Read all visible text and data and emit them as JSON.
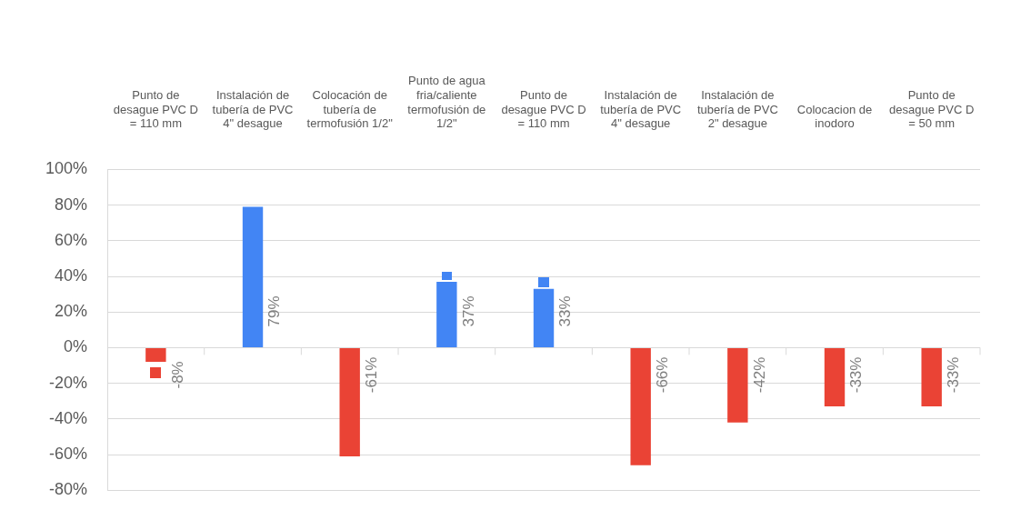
{
  "chart_data": {
    "type": "bar",
    "categories": [
      "Punto de desague PVC D = 110 mm",
      "Instalación de tubería de PVC 4\" desague",
      "Colocación de tubería de termofusión 1/2\"",
      "Punto de agua fria/caliente termofusión de 1/2\"",
      "Punto de desague PVC D = 110 mm",
      "Instalación de tubería de PVC 4\" desague",
      "Instalación de tubería de PVC 2\" desague",
      "Colocacion de inodoro",
      "Punto de desague PVC D = 50 mm"
    ],
    "values": [
      -8,
      79,
      -61,
      37,
      33,
      -66,
      -42,
      -33,
      -33
    ],
    "colors": [
      "#ea4335",
      "#4285f4",
      "#ea4335",
      "#4285f4",
      "#4285f4",
      "#ea4335",
      "#ea4335",
      "#ea4335",
      "#ea4335"
    ],
    "value_labels": [
      "-8%",
      "79%",
      "-61%",
      "37%",
      "33%",
      "-66%",
      "-42%",
      "-33%",
      "-33%"
    ],
    "ylim": [
      -80,
      100
    ],
    "yticks": [
      {
        "value": -80,
        "label": "-80%"
      },
      {
        "value": -60,
        "label": "-60%"
      },
      {
        "value": -40,
        "label": "-40%"
      },
      {
        "value": -20,
        "label": "-20%"
      },
      {
        "value": 0,
        "label": "0%"
      },
      {
        "value": 20,
        "label": "20%"
      },
      {
        "value": 40,
        "label": "40%"
      },
      {
        "value": 60,
        "label": "60%"
      },
      {
        "value": 80,
        "label": "80%"
      },
      {
        "value": 100,
        "label": "100%"
      }
    ],
    "grid": "y",
    "legend": false
  }
}
